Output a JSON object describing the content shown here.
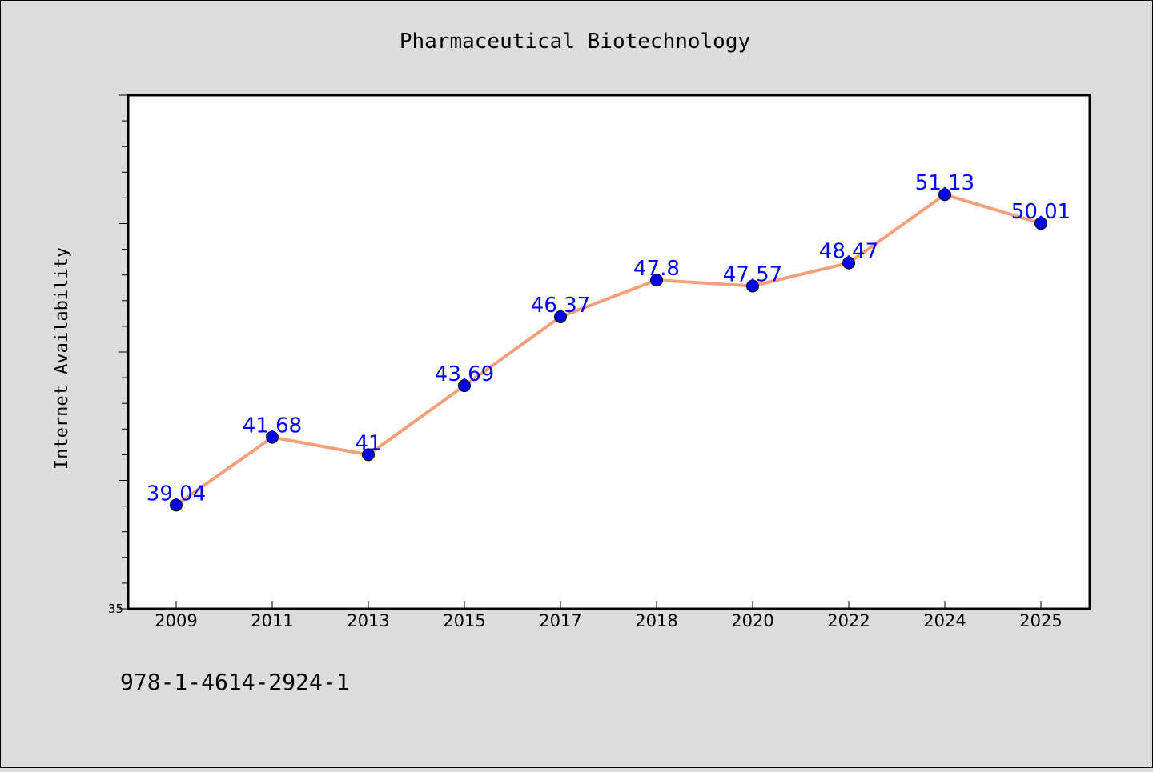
{
  "chart_data": {
    "type": "line",
    "title": "Pharmaceutical Biotechnology",
    "ylabel": "Internet Availability",
    "xlabel": "",
    "categories": [
      "2009",
      "2011",
      "2013",
      "2015",
      "2017",
      "2018",
      "2020",
      "2022",
      "2024",
      "2025"
    ],
    "series": [
      {
        "values": [
          39.04,
          41.68,
          41,
          43.69,
          46.37,
          47.8,
          47.57,
          48.47,
          51.13,
          50.01
        ],
        "data_labels": [
          "39.04",
          "41.68",
          "41",
          "43.69",
          "46.37",
          "47.8",
          "47.57",
          "48.47",
          "51.13",
          "50.01"
        ],
        "line_color": "#f4a07a",
        "marker_color": "#0000ee",
        "label_color": "#0000ff"
      }
    ],
    "ylim": [
      35,
      55
    ],
    "y_tick_labels": [
      "35"
    ],
    "grid": false,
    "legend": "none",
    "footer_text": "978-1-4614-2924-1"
  }
}
